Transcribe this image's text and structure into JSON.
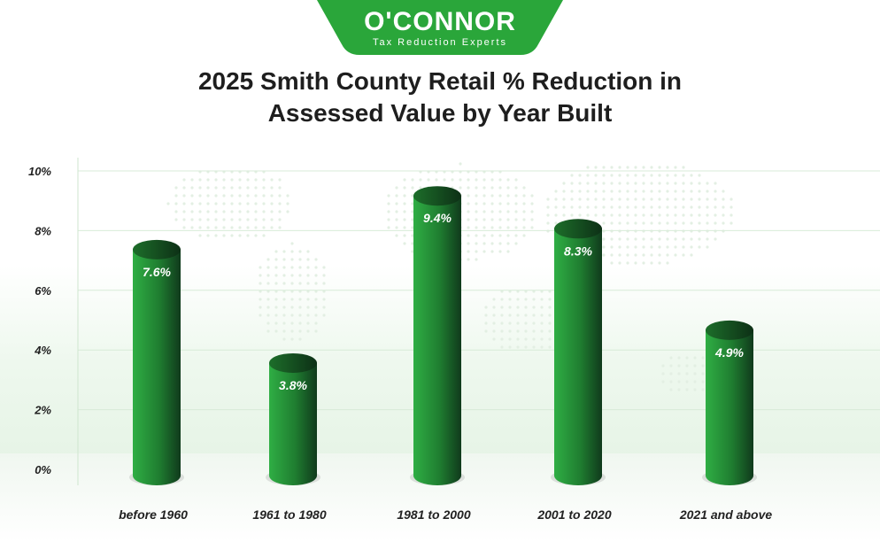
{
  "logo": {
    "name": "O'CONNOR",
    "tagline": "Tax Reduction Experts"
  },
  "colors": {
    "brand_green": "#2aa63a",
    "bar_light": "#2fae44",
    "bar_dark": "#103a1c",
    "title_text": "#1e1e1e"
  },
  "chart_data": {
    "type": "bar",
    "title_line1": "2025 Smith County Retail % Reduction in",
    "title_line2": "Assessed Value by Year Built",
    "categories": [
      "before 1960",
      "1961 to 1980",
      "1981 to 2000",
      "2001 to 2020",
      "2021 and above"
    ],
    "values": [
      7.6,
      3.8,
      9.4,
      8.3,
      4.9
    ],
    "data_labels": [
      "7.6%",
      "3.8%",
      "9.4%",
      "8.3%",
      "4.9%"
    ],
    "y_ticks": [
      "0%",
      "2%",
      "4%",
      "6%",
      "8%",
      "10%"
    ],
    "y_tick_values": [
      0,
      2,
      4,
      6,
      8,
      10
    ],
    "ylim": [
      0,
      10
    ],
    "grid": true,
    "xlabel": "",
    "ylabel": ""
  }
}
